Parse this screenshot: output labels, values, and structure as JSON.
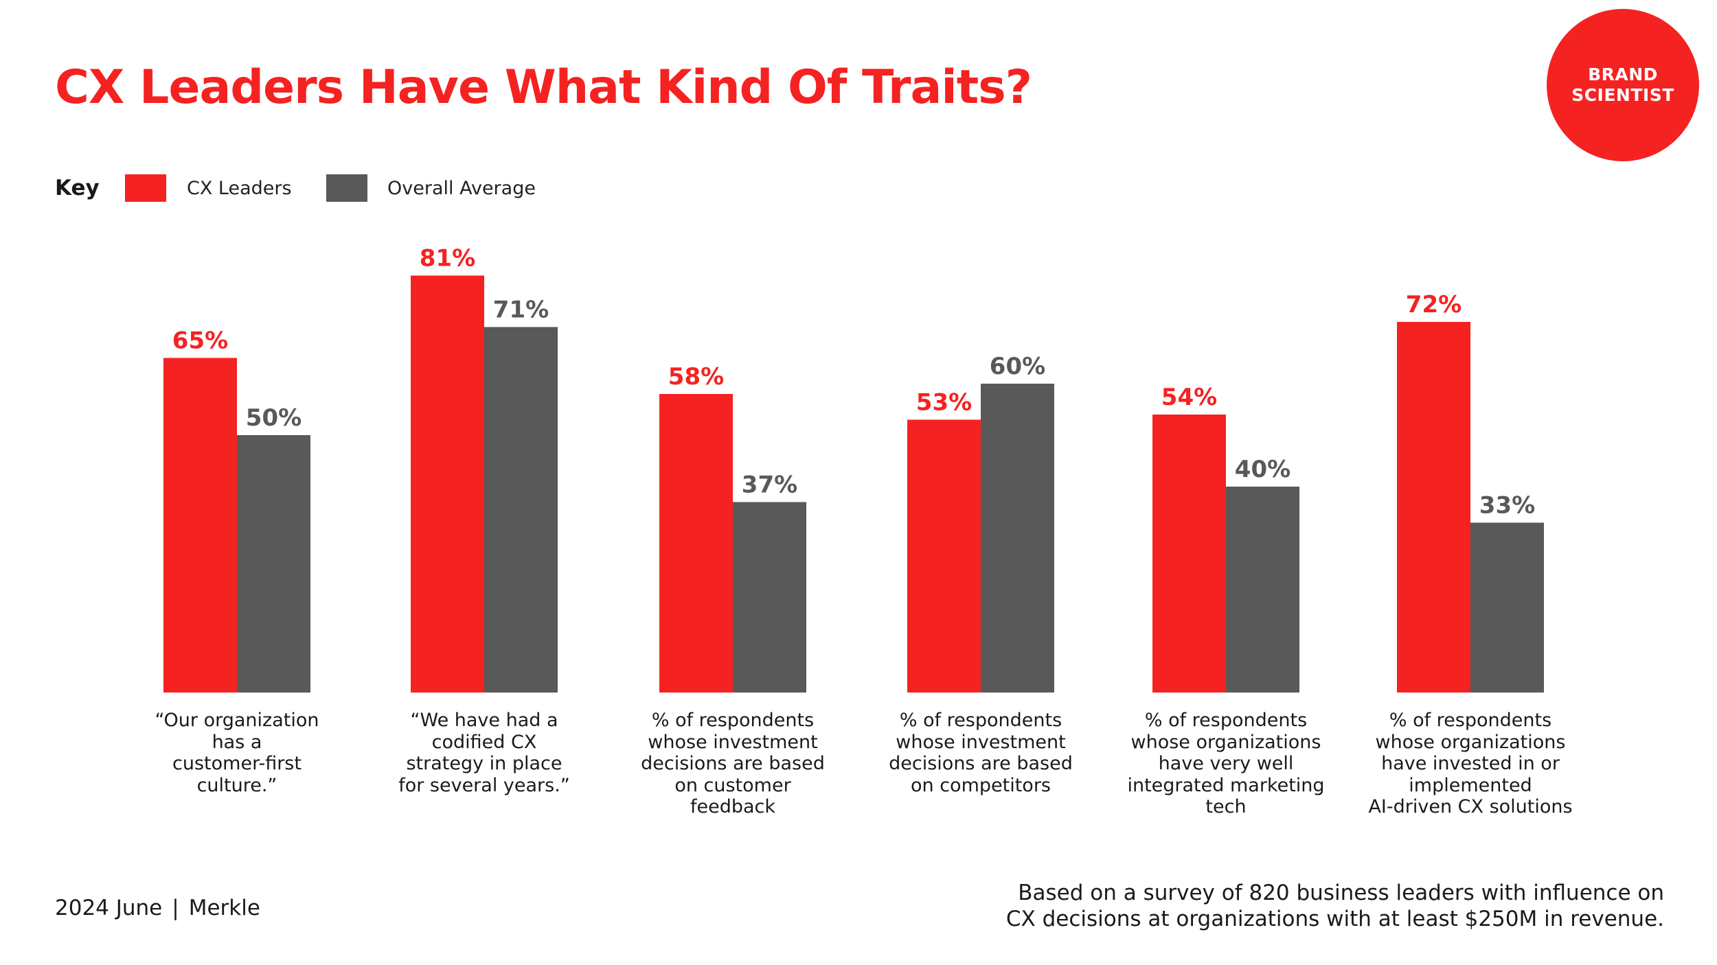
{
  "page": {
    "title": "CX Leaders Have What Kind Of Traits?"
  },
  "logo": {
    "lines": [
      "BRAND",
      "SCIENTIST"
    ]
  },
  "legend": {
    "key_label": "Key",
    "items": [
      {
        "label": "CX Leaders",
        "color": "#f52222"
      },
      {
        "label": "Overall Average",
        "color": "#595959"
      }
    ]
  },
  "chart_data": {
    "type": "bar",
    "categories": [
      [
        "“Our organization",
        "has a",
        "customer-first",
        "culture.”"
      ],
      [
        "“We have had a",
        "codified CX",
        "strategy in place",
        "for several years.”"
      ],
      [
        "% of respondents",
        "whose investment",
        "decisions are based",
        "on customer",
        "feedback"
      ],
      [
        "% of respondents",
        "whose investment",
        "decisions are based",
        "on competitors"
      ],
      [
        "% of respondents",
        "whose organizations",
        "have very well",
        "integrated marketing",
        "tech"
      ],
      [
        "% of respondents",
        "whose organizations",
        "have invested in or",
        "implemented",
        "AI-driven CX solutions"
      ]
    ],
    "series": [
      {
        "name": "CX Leaders",
        "values": [
          65,
          81,
          58,
          53,
          54,
          72
        ],
        "labels": [
          "65%",
          "81%",
          "58%",
          "53%",
          "54%",
          "72%"
        ],
        "color": "#f52222"
      },
      {
        "name": "Overall Average",
        "values": [
          50,
          71,
          37,
          60,
          40,
          33
        ],
        "labels": [
          "50%",
          "71%",
          "37%",
          "60%",
          "40%",
          "33%"
        ],
        "color": "#595959"
      }
    ],
    "unit": "%",
    "ylim": [
      0,
      100
    ],
    "grid": false,
    "legend_position": "top-left"
  },
  "footer": {
    "source_date": "2024 June",
    "separator": "|",
    "source": "Merkle",
    "note_lines": [
      "Based on a survey of 820 business leaders with influence on",
      "CX decisions at organizations with at least $250M in revenue."
    ]
  }
}
